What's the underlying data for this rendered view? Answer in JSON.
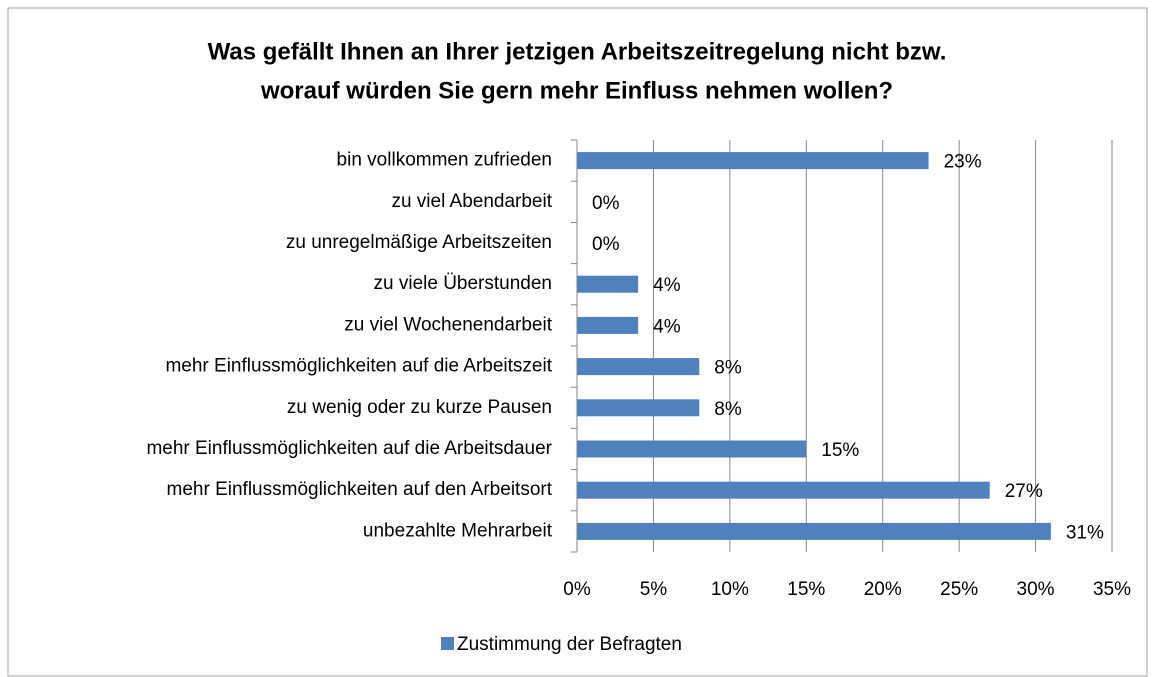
{
  "chart_data": {
    "type": "bar",
    "title": [
      "Was gefällt Ihnen an Ihrer jetzigen Arbeitszeitregelung nicht bzw.",
      "worauf würden Sie gern mehr Einfluss nehmen wollen?"
    ],
    "categories": [
      "bin vollkommen zufrieden",
      "zu viel Abendarbeit",
      "zu unregelmäßige Arbeitszeiten",
      "zu viele Überstunden",
      "zu viel Wochenendarbeit",
      "mehr Einflussmöglichkeiten auf die Arbeitszeit",
      "zu wenig oder zu kurze Pausen",
      "mehr Einflussmöglichkeiten auf die Arbeitsdauer",
      "mehr Einflussmöglichkeiten auf den Arbeitsort",
      "unbezahlte Mehrarbeit"
    ],
    "series": [
      {
        "name": "Zustimmung der Befragten",
        "color": "#4f81bd",
        "values": [
          23,
          0,
          0,
          4,
          4,
          8,
          8,
          15,
          27,
          31
        ],
        "value_labels": [
          "23%",
          "0%",
          "0%",
          "4%",
          "4%",
          "8%",
          "8%",
          "15%",
          "27%",
          "31%"
        ]
      }
    ],
    "xlim": [
      0,
      35
    ],
    "xticks": [
      {
        "value": 0,
        "label": "0%"
      },
      {
        "value": 5,
        "label": "5%"
      },
      {
        "value": 10,
        "label": "10%"
      },
      {
        "value": 15,
        "label": "15%"
      },
      {
        "value": 20,
        "label": "20%"
      },
      {
        "value": 25,
        "label": "25%"
      },
      {
        "value": 30,
        "label": "30%"
      },
      {
        "value": 35,
        "label": "35%"
      }
    ],
    "grid": true,
    "legend": "bottom"
  }
}
